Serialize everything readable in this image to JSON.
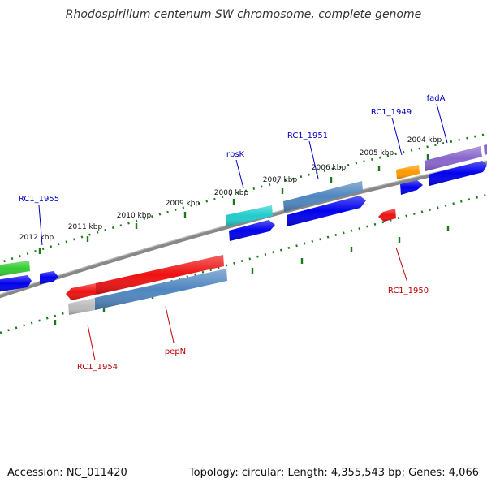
{
  "title": "Rhodospirillum centenum SW chromosome, complete genome",
  "footer": {
    "accession": "Accession: NC_011420",
    "summary": "Topology: circular; Length: 4,355,543 bp; Genes: 4,066"
  },
  "kbp_labels": [
    "2004 kbp",
    "2005 kbp",
    "2006 kbp",
    "2007 kbp",
    "2008 kbp",
    "2009 kbp",
    "2010 kbp",
    "2011 kbp",
    "2012 kbp"
  ],
  "genes_forward": [
    "fadA",
    "RC1_1949",
    "RC1_1951",
    "rbsK",
    "RC1_1955"
  ],
  "genes_reverse": [
    "RC1_1950",
    "pepN",
    "RC1_1954"
  ],
  "colors": {
    "backbone": "#888888",
    "forward_tick": "#1a7a1a",
    "cds": "#0000ee",
    "pepN_gene": "#ee1111",
    "pepN_cds": "#4f86c0",
    "rbsK_gene": "#22cccc",
    "RC1_1951_gene": "#4f86c0",
    "RC1_1949_gene": "#ff9900",
    "fadA_gene": "#8866cc",
    "RC1_1955_gene": "#33cc33",
    "RC1_1950_gene": "#ee1111",
    "RC1_1954_gene": "#ee1111",
    "RC1_1954_cds": "#bbbbbb"
  }
}
